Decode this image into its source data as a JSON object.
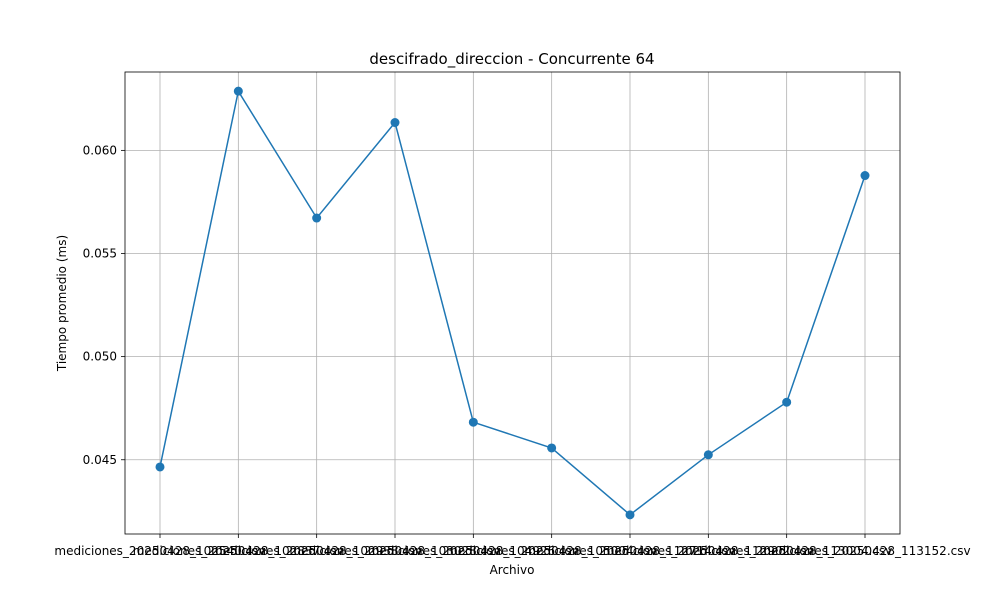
{
  "chart_data": {
    "type": "line",
    "title": "descifrado_direccion - Concurrente 64",
    "xlabel": "Archivo",
    "ylabel": "Tiempo promedio (ms)",
    "categories": [
      "mediciones_20250428_102540.csv",
      "mediciones_20250428_102837.csv",
      "mediciones_20250428_102938.csv",
      "mediciones_20250428_103028.csv",
      "mediciones_20250428_104926.csv",
      "mediciones_20250428_105004.csv",
      "mediciones_20250428_112714.csv",
      "mediciones_20250428_112902.csv",
      "mediciones_20250428_113004.csv",
      "mediciones_20250428_113152.csv"
    ],
    "series": [
      {
        "values": [
          0.04465,
          0.06287,
          0.05672,
          0.06135,
          0.04682,
          0.04557,
          0.04233,
          0.04524,
          0.04779,
          0.05878
        ]
      }
    ],
    "ylim": [
      0.0414,
      0.0638
    ],
    "yticks": [
      "0.045",
      "0.050",
      "0.055",
      "0.060"
    ],
    "grid": true,
    "colors": {
      "series": "#1f77b4"
    }
  }
}
